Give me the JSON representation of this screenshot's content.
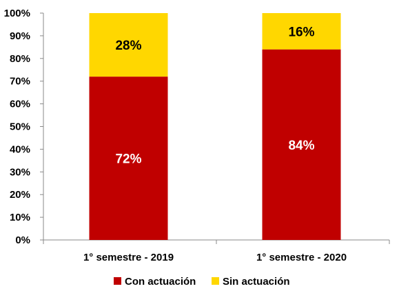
{
  "chart_data": {
    "type": "bar",
    "stacked": true,
    "percent_stacked": true,
    "title": "",
    "xlabel": "",
    "ylabel": "",
    "ylim": [
      0,
      100
    ],
    "y_ticks": [
      "0%",
      "10%",
      "20%",
      "30%",
      "40%",
      "50%",
      "60%",
      "70%",
      "80%",
      "90%",
      "100%"
    ],
    "categories": [
      "1° semestre - 2019",
      "1° semestre - 2020"
    ],
    "series": [
      {
        "name": "Con actuación",
        "values": [
          72,
          84
        ],
        "labels": [
          "72%",
          "84%"
        ],
        "color": "#C00000"
      },
      {
        "name": "Sin actuación",
        "values": [
          28,
          16
        ],
        "labels": [
          "28%",
          "16%"
        ],
        "color": "#FFD700"
      }
    ],
    "grid": false,
    "legend_position": "bottom"
  }
}
